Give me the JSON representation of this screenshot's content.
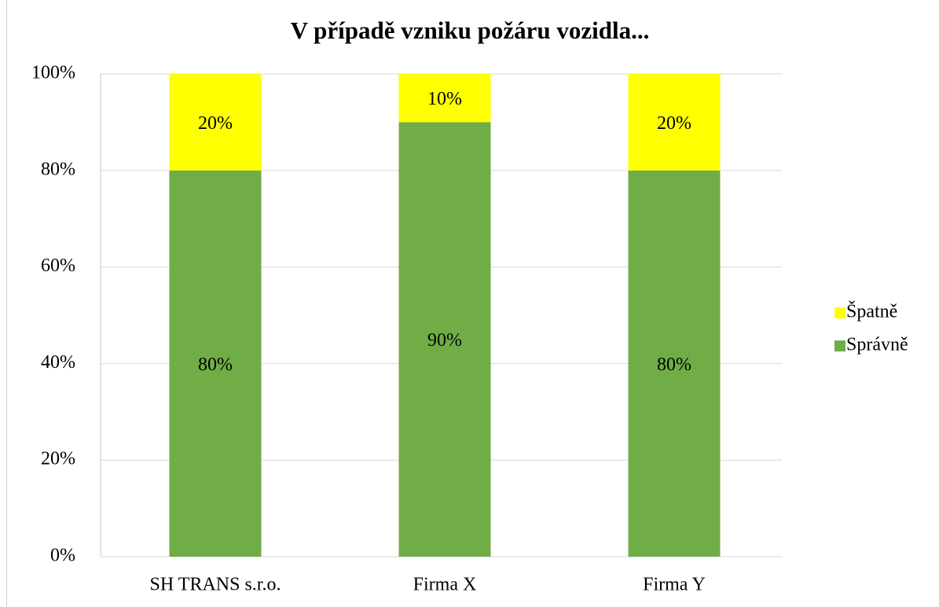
{
  "chart_data": {
    "type": "stacked_bar",
    "title": "V případě vzniku požáru vozidla...",
    "categories": [
      "SH TRANS s.r.o.",
      "Firma X",
      "Firma Y"
    ],
    "series": [
      {
        "name": "Správně",
        "color": "#70ad47",
        "values": [
          80,
          90,
          80
        ],
        "value_labels": [
          "80%",
          "90%",
          "80%"
        ]
      },
      {
        "name": "Špatně",
        "color": "#ffff00",
        "values": [
          20,
          10,
          20
        ],
        "value_labels": [
          "20%",
          "10%",
          "20%"
        ]
      }
    ],
    "ylim": [
      0,
      100
    ],
    "yticks": [
      {
        "value": 0,
        "label": "0%"
      },
      {
        "value": 20,
        "label": "20%"
      },
      {
        "value": 40,
        "label": "40%"
      },
      {
        "value": 60,
        "label": "60%"
      },
      {
        "value": 80,
        "label": "80%"
      },
      {
        "value": 100,
        "label": "100%"
      }
    ],
    "grid": true,
    "legend": "right"
  }
}
